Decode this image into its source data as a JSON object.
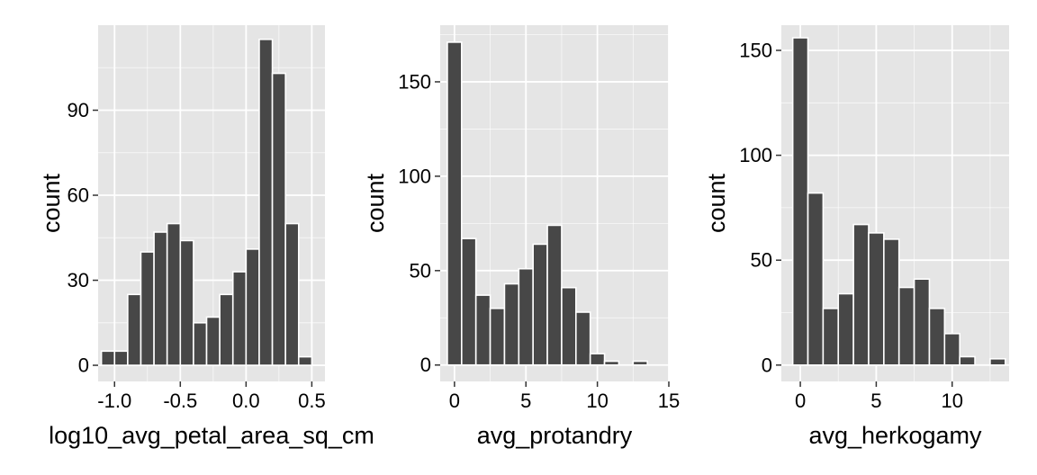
{
  "colors": {
    "panel_background": "#e5e5e5",
    "grid_major": "#ffffff",
    "bar_fill": "#474747",
    "bar_outline": "#ffffff",
    "tick_color": "#333333"
  },
  "chart_data": [
    {
      "type": "bar",
      "xlabel": "log10_avg_petal_area_sq_cm",
      "ylabel": "count",
      "xlim": [
        -1.125,
        0.6
      ],
      "ylim": [
        -5.7,
        120
      ],
      "xticks": [
        -1.0,
        -0.5,
        0.0,
        0.5
      ],
      "xtick_labels": [
        "-1.0",
        "-0.5",
        "0.0",
        "0.5"
      ],
      "yticks": [
        0,
        30,
        60,
        90
      ],
      "ytick_labels": [
        "0",
        "30",
        "60",
        "90"
      ],
      "grid": true,
      "bins": [
        {
          "x": -1.05,
          "count": 5
        },
        {
          "x": -0.95,
          "count": 5
        },
        {
          "x": -0.85,
          "count": 25
        },
        {
          "x": -0.75,
          "count": 40
        },
        {
          "x": -0.65,
          "count": 47
        },
        {
          "x": -0.55,
          "count": 50
        },
        {
          "x": -0.45,
          "count": 44
        },
        {
          "x": -0.35,
          "count": 15
        },
        {
          "x": -0.25,
          "count": 17
        },
        {
          "x": -0.15,
          "count": 25
        },
        {
          "x": -0.05,
          "count": 33
        },
        {
          "x": 0.05,
          "count": 41
        },
        {
          "x": 0.15,
          "count": 115
        },
        {
          "x": 0.25,
          "count": 103
        },
        {
          "x": 0.35,
          "count": 50
        },
        {
          "x": 0.45,
          "count": 3
        }
      ]
    },
    {
      "type": "bar",
      "xlabel": "avg_protandry",
      "ylabel": "count",
      "xlim": [
        -1.0,
        15.0
      ],
      "ylim": [
        -8.7,
        180
      ],
      "xticks": [
        0,
        5,
        10,
        15
      ],
      "xtick_labels": [
        "0",
        "5",
        "10",
        "15"
      ],
      "yticks": [
        0,
        50,
        100,
        150
      ],
      "ytick_labels": [
        "0",
        "50",
        "100",
        "150"
      ],
      "grid": true,
      "bins": [
        {
          "x": 0,
          "count": 171
        },
        {
          "x": 1,
          "count": 67
        },
        {
          "x": 2,
          "count": 37
        },
        {
          "x": 3,
          "count": 30
        },
        {
          "x": 4,
          "count": 43
        },
        {
          "x": 5,
          "count": 51
        },
        {
          "x": 6,
          "count": 64
        },
        {
          "x": 7,
          "count": 74
        },
        {
          "x": 8,
          "count": 41
        },
        {
          "x": 9,
          "count": 28
        },
        {
          "x": 10,
          "count": 6
        },
        {
          "x": 11,
          "count": 2
        },
        {
          "x": 12,
          "count": 0
        },
        {
          "x": 13,
          "count": 2
        }
      ]
    },
    {
      "type": "bar",
      "xlabel": "avg_herkogamy",
      "ylabel": "count",
      "xlim": [
        -1.25,
        13.75
      ],
      "ylim": [
        -7.8,
        162
      ],
      "xticks": [
        0,
        5,
        10
      ],
      "xtick_labels": [
        "0",
        "5",
        "10"
      ],
      "yticks": [
        0,
        50,
        100,
        150
      ],
      "ytick_labels": [
        "0",
        "50",
        "100",
        "150"
      ],
      "grid": true,
      "bins": [
        {
          "x": 0,
          "count": 156
        },
        {
          "x": 1,
          "count": 82
        },
        {
          "x": 2,
          "count": 27
        },
        {
          "x": 3,
          "count": 34
        },
        {
          "x": 4,
          "count": 67
        },
        {
          "x": 5,
          "count": 63
        },
        {
          "x": 6,
          "count": 60
        },
        {
          "x": 7,
          "count": 37
        },
        {
          "x": 8,
          "count": 41
        },
        {
          "x": 9,
          "count": 27
        },
        {
          "x": 10,
          "count": 15
        },
        {
          "x": 11,
          "count": 4
        },
        {
          "x": 12,
          "count": 0
        },
        {
          "x": 13,
          "count": 3
        }
      ]
    }
  ]
}
